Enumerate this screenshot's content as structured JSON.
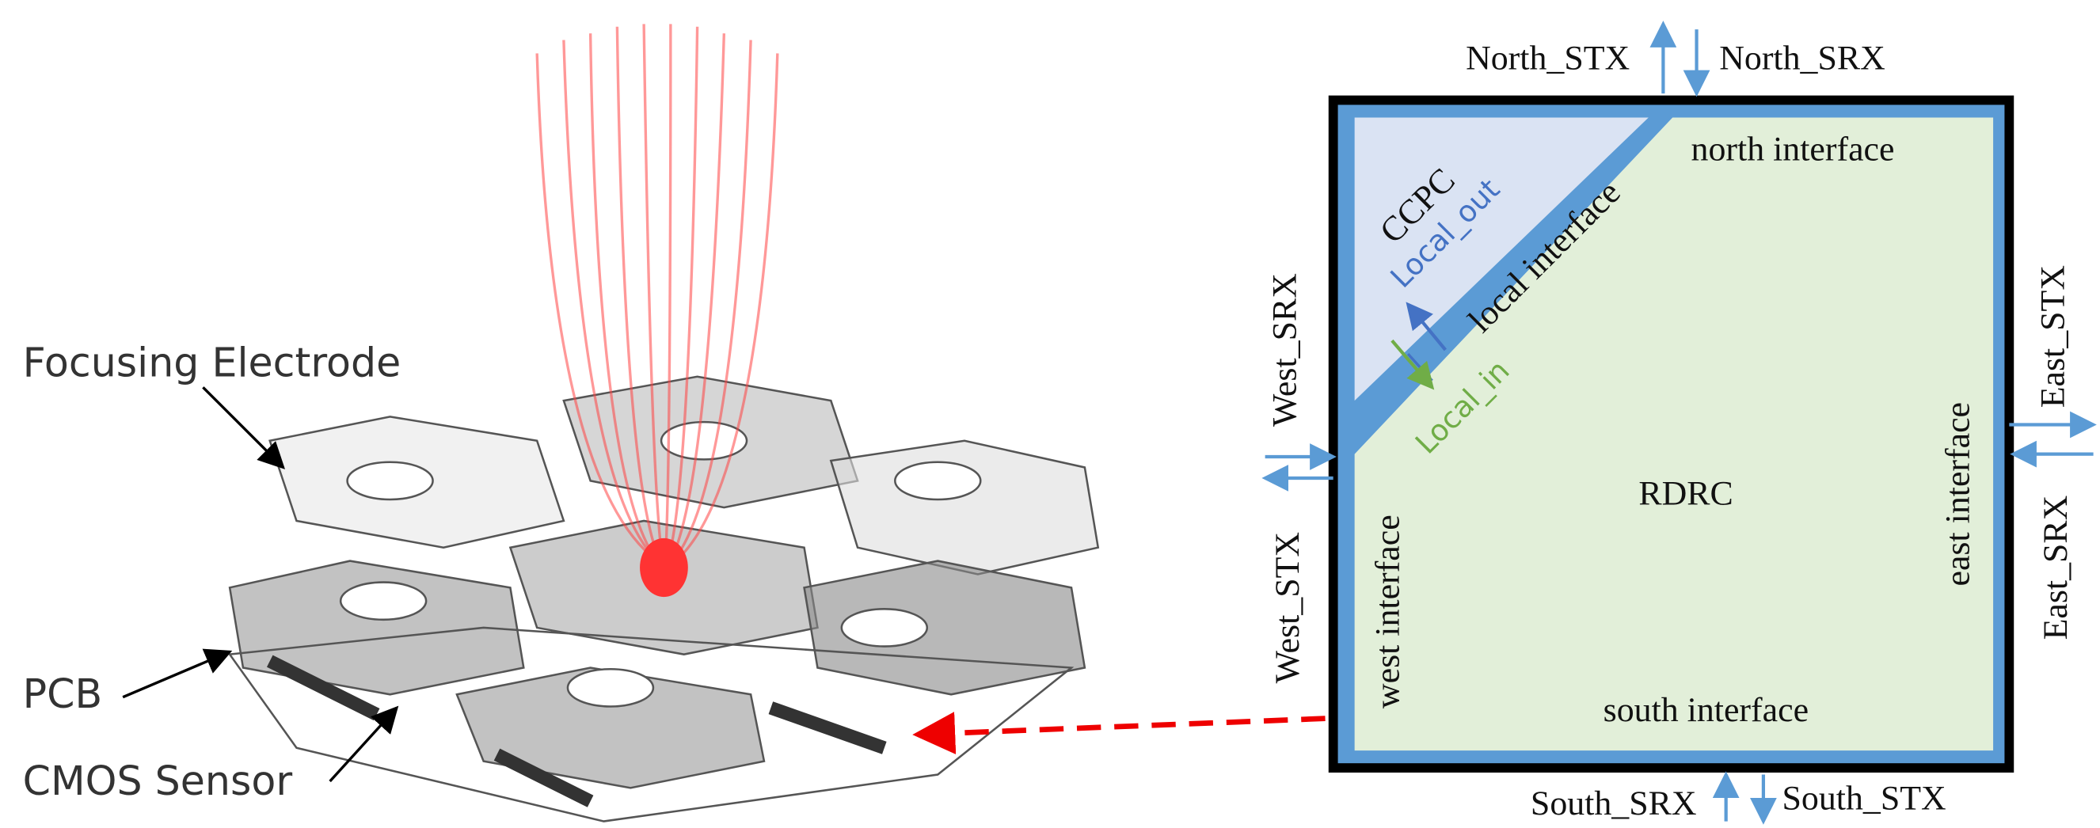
{
  "left_figure": {
    "labels": [
      "Focusing Electrode",
      "PCB",
      "CMOS Sensor"
    ]
  },
  "right_diagram": {
    "blocks": {
      "ccpc": "CCPC",
      "rdrc": "RDRC"
    },
    "interfaces": {
      "local": "local interface",
      "north": "north interface",
      "west": "west interface",
      "east": "east interface",
      "south": "south interface"
    },
    "local_signals": {
      "out": "Local_out",
      "in": "Local_in"
    },
    "ports": {
      "north_stx": "North_STX",
      "north_srx": "North_SRX",
      "west_srx": "West_SRX",
      "west_stx": "West_STX",
      "east_stx": "East_STX",
      "east_srx": "East_SRX",
      "south_srx": "South_SRX",
      "south_stx": "South_STX"
    }
  }
}
